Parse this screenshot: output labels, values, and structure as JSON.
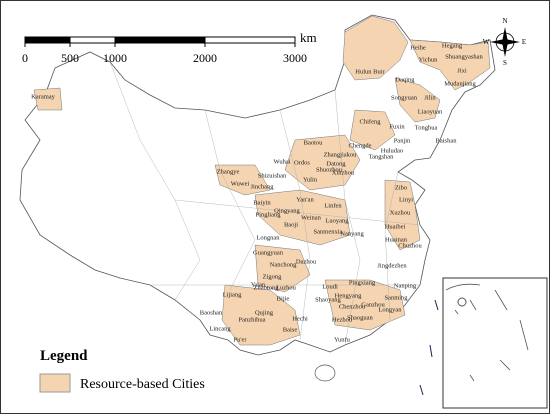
{
  "scale_bar": {
    "ticks": [
      0,
      500,
      1000,
      2000,
      3000
    ],
    "unit": "km"
  },
  "compass": {
    "n": "N",
    "e": "E",
    "s": "S",
    "w": "W"
  },
  "legend": {
    "title": "Legend",
    "items": [
      "Resource-based Cities"
    ]
  },
  "cities": [
    "Hulun Buir",
    "Heihe",
    "Yichun",
    "Hegang",
    "Shuangyashan",
    "Jixi",
    "Mudanjiang",
    "Daqing",
    "Songyuan",
    "Jilin",
    "Karamay",
    "Chifeng",
    "Liaoyuan",
    "Fuxin",
    "Tonghua",
    "Baishan",
    "Panjin",
    "Huludao",
    "Baotou",
    "Chengde",
    "Zhangjiakou",
    "Tangshan",
    "Wuhai",
    "Ordos",
    "Shizuishan",
    "Datong",
    "Zhangye",
    "Wuwei",
    "Jinchang",
    "Yulin",
    "Shuozhou",
    "Xinzhou",
    "Baiyin",
    "Pingliang",
    "Qingyang",
    "Yan'an",
    "Linfen",
    "Weinan",
    "Luoyang",
    "Baoji",
    "Sanmenxia",
    "Longnan",
    "Guangyuan",
    "Nanchong",
    "Dazhou",
    "Nanyang",
    "Zibo",
    "Linyi",
    "Xuzhou",
    "Huaibei",
    "Huainan",
    "Chuzhou",
    "Ya'an",
    "Zigong",
    "Lijiang",
    "Panzhihua",
    "Baoshan",
    "Lincang",
    "Pu'er",
    "Qujing",
    "Zhaotong",
    "Luzhou",
    "Bijie",
    "Hechi",
    "Baise",
    "Hezhou",
    "Shaoguan",
    "Longyan",
    "Sanming",
    "Nanping",
    "Yunfu",
    "Shaoyang",
    "Loudi",
    "Hengyang",
    "Chenzhou",
    "Ganzhou",
    "Pingxiang",
    "Jingdezhen"
  ]
}
